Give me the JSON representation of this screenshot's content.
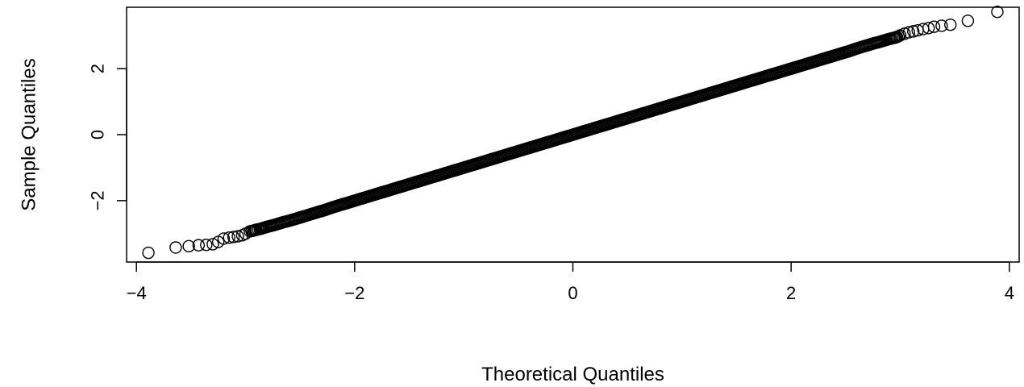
{
  "chart_data": {
    "type": "scatter",
    "title": "",
    "xlabel": "Theoretical Quantiles",
    "ylabel": "Sample Quantiles",
    "xlim": [
      -4.09,
      4.09
    ],
    "ylim": [
      -3.86,
      3.86
    ],
    "x_ticks": [
      -4,
      -2,
      0,
      2,
      4
    ],
    "x_tick_labels": [
      "−4",
      "−2",
      "0",
      "2",
      "4"
    ],
    "y_ticks": [
      -2,
      0,
      2
    ],
    "y_tick_labels": [
      "−2",
      "0",
      "2"
    ],
    "grid": false,
    "legend": "none",
    "marker": "open-circle",
    "colors": {
      "marker": "#000000",
      "axes": "#000000",
      "background": "#ffffff"
    },
    "description": "Normal Q-Q plot, sample quantiles closely follow theoretical quantiles (approximately y = x) over roughly 10000 points.",
    "series": [
      {
        "x": [
          -3.89,
          -3.64,
          -3.52,
          -3.43,
          -3.36,
          -3.3,
          -3.25,
          -3.2,
          -3.15,
          -3.11,
          -3.07,
          -3.03,
          -3.0,
          -2.96,
          -2.93,
          -2.9,
          -2.87,
          -2.84,
          -2.8,
          -2.75,
          -2.7,
          -2.65,
          -2.6,
          -2.55,
          -2.5,
          -2.44,
          -2.38,
          -2.32,
          -2.26,
          -2.2,
          -2.14,
          -2.08,
          -2.02,
          -1.96,
          -1.9,
          -1.84,
          -1.78,
          -1.72,
          -1.66,
          -1.6,
          -1.54,
          -1.48,
          -1.42,
          -1.36,
          -1.3,
          -1.24,
          -1.18,
          -1.12,
          -1.06,
          -1.0,
          -0.94,
          -0.88,
          -0.82,
          -0.76,
          -0.7,
          -0.64,
          -0.58,
          -0.52,
          -0.46,
          -0.4,
          -0.34,
          -0.28,
          -0.22,
          -0.16,
          -0.1,
          -0.04,
          0.02,
          0.08,
          0.14,
          0.2,
          0.26,
          0.32,
          0.38,
          0.44,
          0.5,
          0.56,
          0.62,
          0.68,
          0.74,
          0.8,
          0.86,
          0.92,
          0.98,
          1.04,
          1.1,
          1.16,
          1.22,
          1.28,
          1.34,
          1.4,
          1.46,
          1.52,
          1.58,
          1.64,
          1.7,
          1.76,
          1.82,
          1.88,
          1.94,
          2.0,
          2.06,
          2.12,
          2.18,
          2.24,
          2.3,
          2.36,
          2.42,
          2.48,
          2.54,
          2.6,
          2.66,
          2.71,
          2.76,
          2.81,
          2.86,
          2.9,
          2.94,
          2.97,
          3.0,
          3.04,
          3.08,
          3.12,
          3.16,
          3.21,
          3.26,
          3.31,
          3.38,
          3.46,
          3.62,
          3.89
        ],
        "y": [
          -3.58,
          -3.42,
          -3.38,
          -3.35,
          -3.34,
          -3.32,
          -3.25,
          -3.15,
          -3.12,
          -3.1,
          -3.08,
          -3.05,
          -3.0,
          -2.93,
          -2.91,
          -2.88,
          -2.86,
          -2.83,
          -2.79,
          -2.75,
          -2.7,
          -2.65,
          -2.61,
          -2.56,
          -2.51,
          -2.45,
          -2.39,
          -2.33,
          -2.27,
          -2.2,
          -2.14,
          -2.08,
          -2.02,
          -1.96,
          -1.9,
          -1.84,
          -1.78,
          -1.72,
          -1.66,
          -1.6,
          -1.54,
          -1.48,
          -1.42,
          -1.36,
          -1.3,
          -1.24,
          -1.18,
          -1.12,
          -1.06,
          -1.0,
          -0.94,
          -0.88,
          -0.82,
          -0.76,
          -0.7,
          -0.64,
          -0.58,
          -0.52,
          -0.46,
          -0.4,
          -0.34,
          -0.28,
          -0.22,
          -0.16,
          -0.1,
          -0.04,
          0.02,
          0.08,
          0.14,
          0.2,
          0.26,
          0.32,
          0.38,
          0.44,
          0.5,
          0.56,
          0.62,
          0.68,
          0.74,
          0.8,
          0.86,
          0.92,
          0.98,
          1.04,
          1.1,
          1.16,
          1.22,
          1.28,
          1.34,
          1.4,
          1.46,
          1.52,
          1.58,
          1.64,
          1.7,
          1.76,
          1.82,
          1.88,
          1.94,
          2.0,
          2.06,
          2.12,
          2.18,
          2.24,
          2.3,
          2.36,
          2.42,
          2.48,
          2.54,
          2.61,
          2.67,
          2.72,
          2.77,
          2.81,
          2.86,
          2.9,
          2.93,
          2.96,
          3.01,
          3.06,
          3.1,
          3.13,
          3.16,
          3.2,
          3.23,
          3.27,
          3.3,
          3.33,
          3.45,
          3.72
        ]
      }
    ]
  }
}
